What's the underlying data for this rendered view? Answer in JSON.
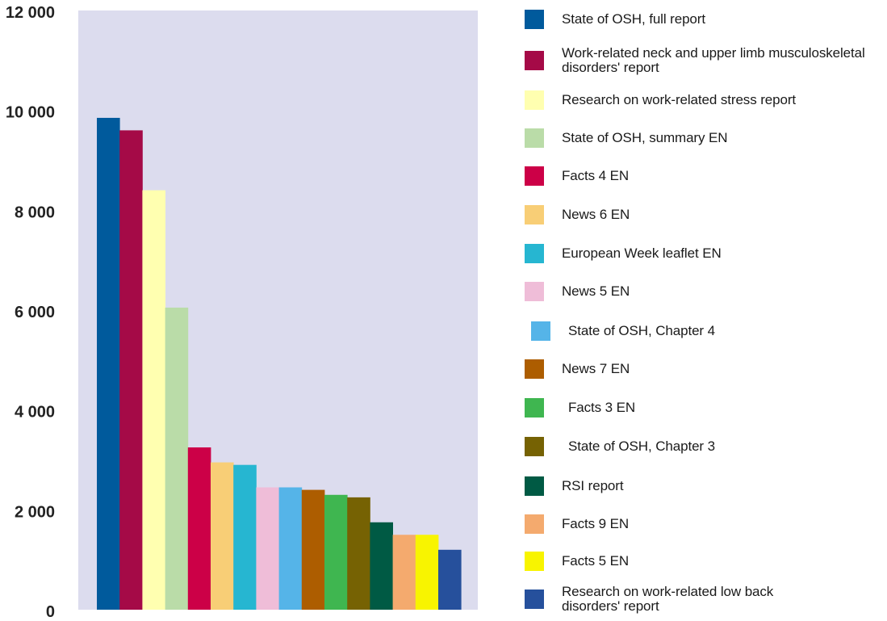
{
  "chart_data": {
    "type": "bar",
    "title": "",
    "xlabel": "",
    "ylabel": "",
    "ylim": [
      0,
      12000
    ],
    "yticks": [
      0,
      2000,
      4000,
      6000,
      8000,
      10000,
      12000
    ],
    "ytick_labels": [
      "0",
      "2 000",
      "4 000",
      "6 000",
      "8 000",
      "10 000",
      "12 000"
    ],
    "grid": false,
    "plot_background": "#dcdcee",
    "legend_position": "right",
    "categories": [
      "State of OSH, full report",
      "Work-related neck and upper limb musculoskeletal disorders' report",
      "Research on work-related stress report",
      "State of OSH, summary EN",
      "Facts 4 EN",
      "News 6 EN",
      "European Week leaflet EN",
      "News 5 EN",
      "State of OSH, Chapter 4",
      "News 7 EN",
      "Facts 3 EN",
      "State of OSH, Chapter 3",
      "RSI report",
      "Facts 9 EN",
      "Facts 5 EN",
      "Research on work-related low back disorders' report"
    ],
    "legend_labels": [
      "State of OSH, full report",
      "Work-related neck and upper limb musculoskeletal\ndisorders' report",
      "Research on work-related stress report",
      "State of OSH, summary EN",
      "Facts 4 EN",
      "News 6 EN",
      "European Week leaflet EN",
      "News 5 EN",
      "State of OSH, Chapter 4",
      "News 7 EN",
      "Facts 3 EN",
      "State of OSH, Chapter 3",
      "RSI report",
      "Facts 9 EN",
      "Facts 5 EN",
      "Research on work-related low back\ndisorders' report"
    ],
    "values": [
      9850,
      9600,
      8400,
      6050,
      3250,
      2950,
      2900,
      2450,
      2450,
      2400,
      2300,
      2250,
      1750,
      1500,
      1500,
      1200
    ],
    "colors": [
      "#005a9c",
      "#a50a47",
      "#ffffb0",
      "#badca8",
      "#cc0047",
      "#f8ce76",
      "#26b6d1",
      "#efbdd8",
      "#55b4e8",
      "#ad5d00",
      "#3fb650",
      "#766203",
      "#005a44",
      "#f4aa6e",
      "#f8f400",
      "#26509c"
    ]
  }
}
